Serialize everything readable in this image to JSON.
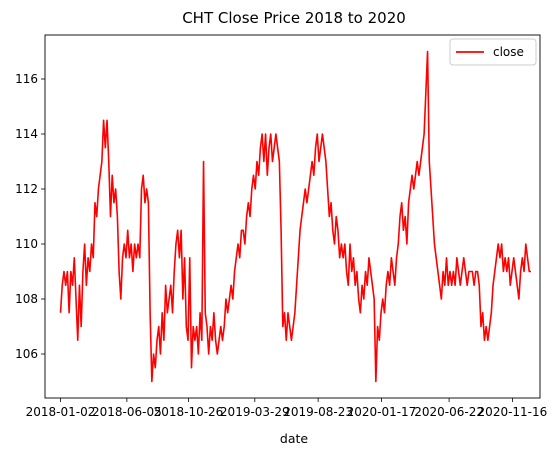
{
  "chart_data": {
    "type": "line",
    "title": "CHT Close Price 2018 to 2020",
    "xlabel": "date",
    "ylabel": "",
    "ylim": [
      104.4,
      117.6
    ],
    "yticks": [
      106,
      108,
      110,
      112,
      114,
      116
    ],
    "xlim": [
      "2017-11-27",
      "2021-01-19"
    ],
    "xticks": [
      {
        "date": "2018-01-02",
        "label": "2018-01-02"
      },
      {
        "date": "2018-06-05",
        "label": "2018-06-05"
      },
      {
        "date": "2018-10-26",
        "label": "2018-10-26"
      },
      {
        "date": "2019-03-29",
        "label": "2019-03-29"
      },
      {
        "date": "2019-08-23",
        "label": "2019-08-23"
      },
      {
        "date": "2020-01-17",
        "label": "2020-01-17"
      },
      {
        "date": "2020-06-22",
        "label": "2020-06-22"
      },
      {
        "date": "2020-11-16",
        "label": "2020-11-16"
      }
    ],
    "legend": {
      "position": "top-right"
    },
    "grid": false,
    "colors": {
      "close": "#ff0000"
    },
    "series": [
      {
        "name": "close",
        "x": [
          "2018-01-02",
          "2018-01-06",
          "2018-01-10",
          "2018-01-14",
          "2018-01-18",
          "2018-01-22",
          "2018-01-26",
          "2018-01-30",
          "2018-02-03",
          "2018-02-07",
          "2018-02-11",
          "2018-02-15",
          "2018-02-19",
          "2018-02-23",
          "2018-02-27",
          "2018-03-03",
          "2018-03-07",
          "2018-03-11",
          "2018-03-15",
          "2018-03-19",
          "2018-03-23",
          "2018-03-27",
          "2018-03-31",
          "2018-04-04",
          "2018-04-08",
          "2018-04-12",
          "2018-04-16",
          "2018-04-20",
          "2018-04-24",
          "2018-04-28",
          "2018-05-02",
          "2018-05-06",
          "2018-05-10",
          "2018-05-14",
          "2018-05-18",
          "2018-05-22",
          "2018-05-26",
          "2018-05-30",
          "2018-06-03",
          "2018-06-07",
          "2018-06-11",
          "2018-06-15",
          "2018-06-19",
          "2018-06-23",
          "2018-06-27",
          "2018-07-01",
          "2018-07-05",
          "2018-07-09",
          "2018-07-13",
          "2018-07-17",
          "2018-07-21",
          "2018-07-25",
          "2018-07-29",
          "2018-08-02",
          "2018-08-06",
          "2018-08-10",
          "2018-08-14",
          "2018-08-18",
          "2018-08-22",
          "2018-08-26",
          "2018-08-30",
          "2018-09-03",
          "2018-09-07",
          "2018-09-11",
          "2018-09-15",
          "2018-09-19",
          "2018-09-23",
          "2018-09-27",
          "2018-10-01",
          "2018-10-05",
          "2018-10-09",
          "2018-10-13",
          "2018-10-17",
          "2018-10-21",
          "2018-10-25",
          "2018-10-29",
          "2018-11-02",
          "2018-11-06",
          "2018-11-10",
          "2018-11-14",
          "2018-11-18",
          "2018-11-22",
          "2018-11-26",
          "2018-11-30",
          "2018-12-04",
          "2018-12-08",
          "2018-12-12",
          "2018-12-16",
          "2018-12-20",
          "2018-12-24",
          "2018-12-28",
          "2019-01-01",
          "2019-01-05",
          "2019-01-09",
          "2019-01-13",
          "2019-01-17",
          "2019-01-21",
          "2019-01-25",
          "2019-01-29",
          "2019-02-02",
          "2019-02-06",
          "2019-02-10",
          "2019-02-14",
          "2019-02-18",
          "2019-02-22",
          "2019-02-26",
          "2019-03-02",
          "2019-03-06",
          "2019-03-10",
          "2019-03-14",
          "2019-03-18",
          "2019-03-22",
          "2019-03-26",
          "2019-03-30",
          "2019-04-03",
          "2019-04-07",
          "2019-04-11",
          "2019-04-15",
          "2019-04-19",
          "2019-04-23",
          "2019-04-27",
          "2019-05-01",
          "2019-05-05",
          "2019-05-09",
          "2019-05-13",
          "2019-05-17",
          "2019-05-21",
          "2019-05-25",
          "2019-05-29",
          "2019-06-02",
          "2019-06-06",
          "2019-06-10",
          "2019-06-14",
          "2019-06-18",
          "2019-06-22",
          "2019-06-26",
          "2019-06-30",
          "2019-07-04",
          "2019-07-08",
          "2019-07-12",
          "2019-07-16",
          "2019-07-20",
          "2019-07-24",
          "2019-07-28",
          "2019-08-01",
          "2019-08-05",
          "2019-08-09",
          "2019-08-13",
          "2019-08-17",
          "2019-08-21",
          "2019-08-25",
          "2019-08-29",
          "2019-09-02",
          "2019-09-06",
          "2019-09-10",
          "2019-09-14",
          "2019-09-18",
          "2019-09-22",
          "2019-09-26",
          "2019-09-30",
          "2019-10-04",
          "2019-10-08",
          "2019-10-12",
          "2019-10-16",
          "2019-10-20",
          "2019-10-24",
          "2019-10-28",
          "2019-11-01",
          "2019-11-05",
          "2019-11-09",
          "2019-11-13",
          "2019-11-17",
          "2019-11-21",
          "2019-11-25",
          "2019-11-29",
          "2019-12-03",
          "2019-12-07",
          "2019-12-11",
          "2019-12-15",
          "2019-12-19",
          "2019-12-23",
          "2019-12-27",
          "2019-12-31",
          "2020-01-04",
          "2020-01-08",
          "2020-01-12",
          "2020-01-16",
          "2020-01-20",
          "2020-01-24",
          "2020-01-28",
          "2020-02-01",
          "2020-02-05",
          "2020-02-09",
          "2020-02-13",
          "2020-02-17",
          "2020-02-21",
          "2020-02-25",
          "2020-02-29",
          "2020-03-04",
          "2020-03-08",
          "2020-03-12",
          "2020-03-16",
          "2020-03-20",
          "2020-03-24",
          "2020-03-28",
          "2020-04-01",
          "2020-04-05",
          "2020-04-09",
          "2020-04-13",
          "2020-04-17",
          "2020-04-21",
          "2020-04-25",
          "2020-04-29",
          "2020-05-03",
          "2020-05-07",
          "2020-05-11",
          "2020-05-15",
          "2020-05-19",
          "2020-05-23",
          "2020-05-27",
          "2020-05-31",
          "2020-06-04",
          "2020-06-08",
          "2020-06-12",
          "2020-06-16",
          "2020-06-20",
          "2020-06-24",
          "2020-06-28",
          "2020-07-02",
          "2020-07-06",
          "2020-07-10",
          "2020-07-14",
          "2020-07-18",
          "2020-07-22",
          "2020-07-26",
          "2020-07-30",
          "2020-08-03",
          "2020-08-07",
          "2020-08-11",
          "2020-08-15",
          "2020-08-19",
          "2020-08-23",
          "2020-08-27",
          "2020-08-31",
          "2020-09-04",
          "2020-09-08",
          "2020-09-12",
          "2020-09-16",
          "2020-09-20",
          "2020-09-24",
          "2020-09-28",
          "2020-10-02",
          "2020-10-06",
          "2020-10-10",
          "2020-10-14",
          "2020-10-18",
          "2020-10-22",
          "2020-10-26",
          "2020-10-30",
          "2020-11-03",
          "2020-11-07",
          "2020-11-11",
          "2020-11-15",
          "2020-11-19",
          "2020-11-23",
          "2020-11-27",
          "2020-12-01",
          "2020-12-05",
          "2020-12-09",
          "2020-12-13",
          "2020-12-17",
          "2020-12-21",
          "2020-12-25",
          "2020-12-29"
        ],
        "values": [
          107.5,
          108.5,
          109.0,
          108.5,
          109.0,
          107.5,
          109.0,
          108.5,
          109.5,
          108.0,
          106.5,
          108.5,
          107.0,
          109.0,
          110.0,
          108.5,
          109.5,
          109.0,
          110.0,
          109.5,
          111.5,
          111.0,
          112.0,
          112.5,
          113.0,
          114.5,
          113.5,
          114.5,
          113.0,
          111.0,
          112.5,
          111.5,
          112.0,
          111.0,
          109.0,
          108.0,
          109.5,
          110.0,
          109.5,
          110.5,
          109.5,
          110.0,
          109.0,
          110.0,
          109.5,
          110.0,
          109.5,
          112.0,
          112.5,
          111.5,
          112.0,
          111.5,
          107.5,
          105.0,
          106.0,
          105.5,
          106.5,
          107.0,
          106.0,
          107.5,
          106.5,
          108.5,
          107.5,
          108.0,
          108.5,
          107.5,
          109.0,
          110.0,
          110.5,
          109.5,
          110.5,
          108.0,
          109.5,
          107.0,
          106.5,
          109.5,
          105.5,
          107.0,
          106.5,
          107.0,
          106.0,
          107.5,
          106.5,
          113.0,
          107.5,
          107.0,
          106.0,
          107.0,
          106.5,
          107.5,
          106.5,
          106.0,
          106.5,
          107.0,
          106.5,
          107.0,
          108.0,
          107.5,
          108.0,
          108.5,
          108.0,
          109.0,
          109.5,
          110.0,
          109.5,
          110.5,
          110.5,
          110.0,
          111.0,
          111.5,
          111.0,
          112.0,
          112.5,
          112.0,
          113.0,
          112.5,
          113.5,
          114.0,
          113.0,
          114.0,
          112.5,
          113.5,
          114.0,
          113.0,
          113.5,
          114.0,
          113.5,
          113.0,
          110.5,
          107.0,
          107.5,
          106.5,
          107.5,
          107.0,
          106.5,
          107.0,
          107.5,
          108.5,
          109.5,
          110.5,
          111.0,
          111.5,
          112.0,
          111.5,
          112.0,
          112.5,
          113.0,
          112.5,
          113.5,
          114.0,
          113.0,
          113.5,
          114.0,
          113.5,
          113.0,
          112.0,
          111.0,
          111.5,
          110.5,
          110.0,
          111.0,
          110.5,
          109.5,
          110.0,
          109.5,
          110.0,
          109.0,
          108.5,
          110.0,
          109.0,
          109.5,
          108.5,
          109.0,
          108.0,
          107.5,
          108.5,
          108.0,
          109.0,
          108.5,
          109.5,
          109.0,
          108.5,
          108.0,
          105.0,
          107.0,
          106.5,
          107.5,
          108.0,
          107.5,
          108.5,
          109.0,
          108.5,
          109.5,
          109.0,
          108.5,
          109.5,
          110.0,
          111.0,
          111.5,
          110.5,
          111.0,
          110.0,
          111.5,
          112.0,
          112.5,
          112.0,
          112.5,
          113.0,
          112.5,
          113.0,
          113.5,
          114.0,
          115.5,
          117.0,
          113.0,
          112.0,
          111.0,
          110.0,
          109.5,
          109.0,
          108.5,
          108.0,
          109.0,
          108.5,
          109.5,
          108.5,
          109.0,
          108.5,
          109.0,
          108.5,
          109.5,
          109.0,
          108.5,
          109.0,
          109.5,
          109.0,
          108.5,
          109.0,
          109.0,
          109.0,
          108.5,
          109.0,
          109.0,
          108.5,
          107.0,
          107.5,
          106.5,
          107.0,
          106.5,
          107.0,
          107.5,
          108.5,
          109.0,
          109.5,
          110.0,
          109.5,
          110.0,
          109.0,
          109.5,
          109.0,
          109.5,
          108.5,
          109.0,
          109.5,
          109.0,
          108.5,
          108.0,
          109.0,
          109.5,
          109.0,
          110.0,
          109.5,
          109.0,
          109.0
        ]
      }
    ]
  }
}
